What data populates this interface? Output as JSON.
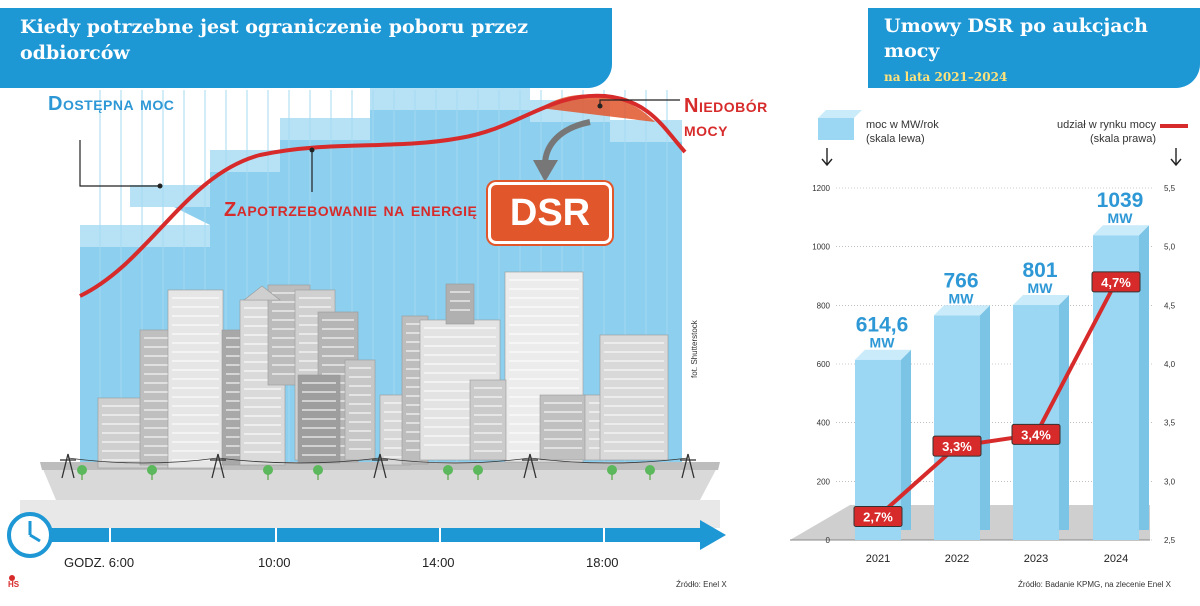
{
  "left": {
    "title": "Kiedy potrzebne jest ograniczenie poboru przez odbiorców",
    "label_available": "Dostępna moc",
    "label_demand": "Zapotrzebowanie na energię",
    "label_deficit": "Niedobór mocy",
    "dsr": "DSR",
    "times": [
      "GODZ. 6:00",
      "10:00",
      "14:00",
      "18:00"
    ],
    "credit": "fot. Shutterstock",
    "source": "Źródło: Enel X",
    "logo_text": "HS"
  },
  "right": {
    "title": "Umowy DSR po aukcjach mocy",
    "subtitle": "na lata 2021–2024",
    "source": "Źródło: Badanie KPMG, na zlecenie Enel X"
  },
  "legend": {
    "bars": "moc w MW/rok (skala lewa)",
    "line": "udział w rynku mocy (skala prawa)"
  },
  "colors": {
    "header_blue": "#1e97d5",
    "sky_blue": "#8ccfee",
    "demand_red": "#d72b2b",
    "dsr_orange": "#e2562b",
    "bar_blue": "#9bd6f2"
  },
  "chart_data": [
    {
      "type": "line",
      "title": "Kiedy potrzebne jest ograniczenie poboru przez odbiorców",
      "xlabel": "",
      "ylabel": "",
      "x_ticks": [
        "GODZ. 6:00",
        "10:00",
        "14:00",
        "18:00"
      ],
      "series": [
        {
          "name": "Zapotrzebowanie na energię",
          "style": "curve"
        },
        {
          "name": "Dostępna moc",
          "style": "stepped area"
        }
      ],
      "annotations": [
        "Niedobór mocy",
        "DSR"
      ],
      "grid": false
    },
    {
      "type": "bar",
      "title": "Umowy DSR po aukcjach mocy",
      "subtitle": "na lata 2021–2024",
      "categories": [
        "2021",
        "2022",
        "2023",
        "2024"
      ],
      "series": [
        {
          "name": "moc w MW/rok",
          "axis": "left",
          "values": [
            614.6,
            766,
            801,
            1039
          ],
          "labels": [
            "614,6 MW",
            "766 MW",
            "801 MW",
            "1039 MW"
          ]
        },
        {
          "name": "udział w rynku mocy",
          "axis": "right",
          "type": "line",
          "values": [
            2.7,
            3.3,
            3.4,
            4.7
          ],
          "labels": [
            "2,7%",
            "3,3%",
            "3,4%",
            "4,7%"
          ]
        }
      ],
      "ylim_left": [
        0,
        1200
      ],
      "yticks_left": [
        "0",
        "200",
        "400",
        "600",
        "800",
        "1000",
        "1200"
      ],
      "ylim_right": [
        2.5,
        5.5
      ],
      "yticks_right": [
        "2,5",
        "3,0",
        "3,5",
        "4,0",
        "4,5",
        "5,0",
        "5,5"
      ],
      "grid": true
    }
  ]
}
